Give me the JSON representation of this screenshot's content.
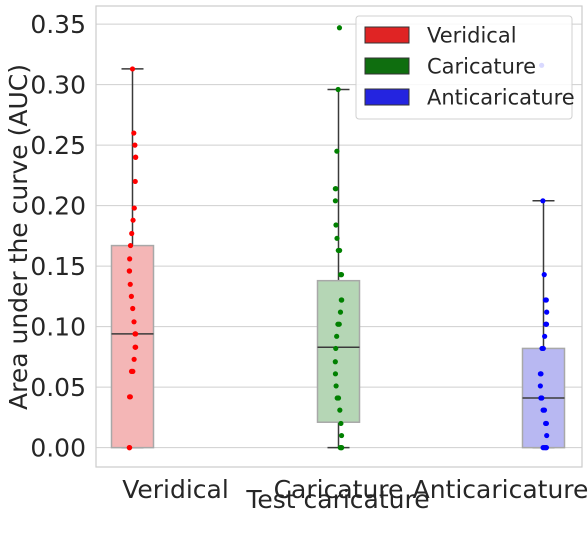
{
  "chart_data": {
    "type": "box",
    "xlabel": "Test caricature",
    "ylabel": "Area under the curve (AUC)",
    "ylim": [
      -0.016,
      0.365
    ],
    "yticks": [
      0.0,
      0.05,
      0.1,
      0.15,
      0.2,
      0.25,
      0.3,
      0.35
    ],
    "ytick_labels": [
      "0.00",
      "0.05",
      "0.10",
      "0.15",
      "0.20",
      "0.25",
      "0.30",
      "0.35"
    ],
    "grid": true,
    "legend_position": "top-right",
    "legend": [
      {
        "label": "Veridical",
        "color": "#e02424"
      },
      {
        "label": "Caricature",
        "color": "#0f6e0f"
      },
      {
        "label": "Anticaricature",
        "color": "#2424e0"
      }
    ],
    "categories": [
      "Veridical",
      "Caricature",
      "Anticaricature"
    ],
    "series": [
      {
        "category": "Veridical",
        "slot": 0,
        "box_fill": "#f4b6b6",
        "point_color": "#ff0000",
        "stats": {
          "whislo": 0.0,
          "q1": 0.0,
          "med": 0.094,
          "q3": 0.167,
          "whishi": 0.313
        },
        "points": [
          0.313,
          0.26,
          0.25,
          0.24,
          0.24,
          0.22,
          0.198,
          0.188,
          0.177,
          0.167,
          0.156,
          0.146,
          0.146,
          0.135,
          0.125,
          0.115,
          0.104,
          0.094,
          0.094,
          0.083,
          0.083,
          0.073,
          0.063,
          0.063,
          0.042,
          0.042,
          0.0,
          0.0
        ]
      },
      {
        "category": "Caricature",
        "slot": 1,
        "box_fill": "#b5d6b5",
        "point_color": "#008000",
        "stats": {
          "whislo": 0.0,
          "q1": 0.021,
          "med": 0.083,
          "q3": 0.138,
          "whishi": 0.296
        },
        "points": [
          0.347,
          0.296,
          0.245,
          0.214,
          0.214,
          0.204,
          0.184,
          0.173,
          0.163,
          0.163,
          0.143,
          0.143,
          0.122,
          0.122,
          0.112,
          0.102,
          0.102,
          0.092,
          0.082,
          0.071,
          0.061,
          0.051,
          0.041,
          0.041,
          0.031,
          0.02,
          0.01,
          0.0,
          0.0,
          0.0
        ]
      },
      {
        "category": "Anticaricature",
        "slot": 2,
        "box_fill": "#b8b8f2",
        "point_color": "#0000ff",
        "stats": {
          "whislo": 0.0,
          "q1": 0.0,
          "med": 0.041,
          "q3": 0.082,
          "whishi": 0.204
        },
        "points": [
          0.316,
          0.204,
          0.143,
          0.122,
          0.122,
          0.112,
          0.102,
          0.102,
          0.092,
          0.082,
          0.082,
          0.061,
          0.061,
          0.051,
          0.041,
          0.041,
          0.031,
          0.031,
          0.02,
          0.02,
          0.01,
          0.0,
          0.0,
          0.0,
          0.0
        ]
      }
    ]
  }
}
